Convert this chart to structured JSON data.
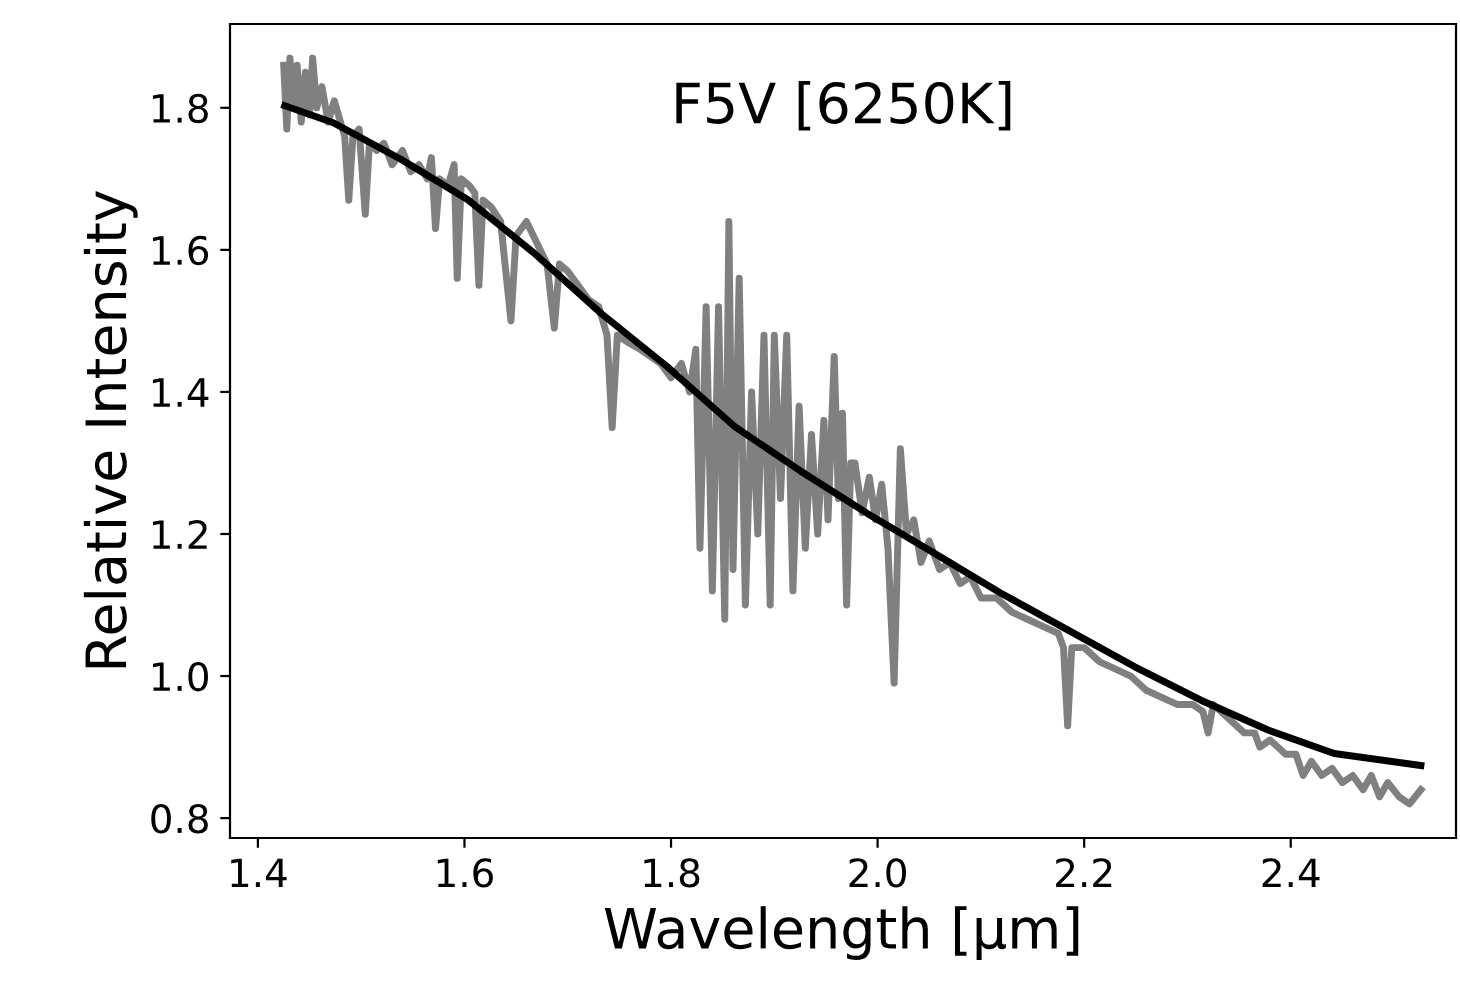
{
  "chart_data": {
    "type": "line",
    "title": "F5V [6250K]",
    "xlabel": "Wavelength [μm]",
    "ylabel": "Relative Intensity",
    "xlim": [
      1.373,
      2.56
    ],
    "ylim": [
      0.772,
      1.918
    ],
    "xticks": [
      1.4,
      1.6,
      1.8,
      {
        "value": 2,
        "label": "2.0"
      },
      2.2,
      2.4
    ],
    "yticks": [
      0.8,
      {
        "value": 1,
        "label": "1.0"
      },
      1.2,
      1.4,
      1.6,
      1.8
    ],
    "grid": false,
    "legend": false,
    "line_style": "solid",
    "marker": "none",
    "series": [
      {
        "color": "#808080",
        "x": [
          1.425,
          1.428,
          1.431,
          1.435,
          1.438,
          1.442,
          1.446,
          1.45,
          1.453,
          1.457,
          1.462,
          1.468,
          1.474,
          1.48,
          1.484,
          1.488,
          1.492,
          1.498,
          1.504,
          1.508,
          1.515,
          1.522,
          1.53,
          1.54,
          1.548,
          1.556,
          1.564,
          1.568,
          1.572,
          1.576,
          1.584,
          1.59,
          1.593,
          1.597,
          1.605,
          1.61,
          1.614,
          1.618,
          1.626,
          1.635,
          1.645,
          1.65,
          1.66,
          1.67,
          1.68,
          1.687,
          1.692,
          1.7,
          1.71,
          1.72,
          1.73,
          1.738,
          1.743,
          1.748,
          1.758,
          1.77,
          1.78,
          1.79,
          1.8,
          1.81,
          1.818,
          1.824,
          1.828,
          1.834,
          1.84,
          1.846,
          1.852,
          1.856,
          1.86,
          1.866,
          1.872,
          1.878,
          1.884,
          1.89,
          1.896,
          1.9,
          1.906,
          1.912,
          1.918,
          1.924,
          1.93,
          1.936,
          1.942,
          1.948,
          1.952,
          1.958,
          1.962,
          1.966,
          1.97,
          1.974,
          1.978,
          1.985,
          1.992,
          1.998,
          2.004,
          2.01,
          2.016,
          2.022,
          2.028,
          2.035,
          2.042,
          2.05,
          2.06,
          2.07,
          2.08,
          2.09,
          2.1,
          2.115,
          2.13,
          2.145,
          2.16,
          2.175,
          2.18,
          2.184,
          2.188,
          2.2,
          2.215,
          2.23,
          2.245,
          2.26,
          2.275,
          2.29,
          2.305,
          2.315,
          2.32,
          2.325,
          2.34,
          2.355,
          2.365,
          2.37,
          2.38,
          2.395,
          2.405,
          2.412,
          2.42,
          2.43,
          2.44,
          2.45,
          2.46,
          2.47,
          2.478,
          2.486,
          2.494,
          2.505,
          2.515,
          2.526
        ],
        "values": [
          1.86,
          1.77,
          1.87,
          1.8,
          1.86,
          1.78,
          1.85,
          1.79,
          1.87,
          1.8,
          1.83,
          1.78,
          1.81,
          1.78,
          1.76,
          1.67,
          1.76,
          1.77,
          1.65,
          1.75,
          1.74,
          1.75,
          1.72,
          1.74,
          1.71,
          1.72,
          1.7,
          1.73,
          1.63,
          1.7,
          1.69,
          1.72,
          1.56,
          1.7,
          1.69,
          1.68,
          1.55,
          1.67,
          1.66,
          1.64,
          1.5,
          1.62,
          1.64,
          1.61,
          1.58,
          1.49,
          1.58,
          1.57,
          1.55,
          1.53,
          1.52,
          1.48,
          1.35,
          1.48,
          1.47,
          1.46,
          1.45,
          1.44,
          1.42,
          1.44,
          1.4,
          1.46,
          1.18,
          1.52,
          1.12,
          1.52,
          1.08,
          1.64,
          1.15,
          1.56,
          1.1,
          1.4,
          1.2,
          1.48,
          1.1,
          1.48,
          1.25,
          1.48,
          1.12,
          1.38,
          1.18,
          1.34,
          1.2,
          1.36,
          1.22,
          1.45,
          1.25,
          1.37,
          1.1,
          1.3,
          1.3,
          1.23,
          1.28,
          1.22,
          1.27,
          1.18,
          0.99,
          1.32,
          1.2,
          1.22,
          1.16,
          1.19,
          1.15,
          1.16,
          1.13,
          1.14,
          1.11,
          1.11,
          1.09,
          1.08,
          1.07,
          1.06,
          1.04,
          0.93,
          1.04,
          1.04,
          1.02,
          1.01,
          1.0,
          0.98,
          0.97,
          0.96,
          0.96,
          0.95,
          0.92,
          0.96,
          0.94,
          0.92,
          0.92,
          0.9,
          0.91,
          0.89,
          0.89,
          0.86,
          0.88,
          0.86,
          0.87,
          0.85,
          0.86,
          0.84,
          0.86,
          0.83,
          0.85,
          0.83,
          0.82,
          0.84
        ]
      },
      {
        "color": "#000000",
        "x": [
          1.426,
          1.473,
          1.538,
          1.603,
          1.667,
          1.732,
          1.796,
          1.861,
          1.926,
          1.99,
          2.055,
          2.119,
          2.184,
          2.249,
          2.313,
          2.378,
          2.442,
          2.526
        ],
        "values": [
          1.803,
          1.779,
          1.728,
          1.671,
          1.596,
          1.511,
          1.436,
          1.352,
          1.288,
          1.229,
          1.173,
          1.117,
          1.065,
          1.013,
          0.966,
          0.924,
          0.891,
          0.874
        ]
      }
    ]
  }
}
